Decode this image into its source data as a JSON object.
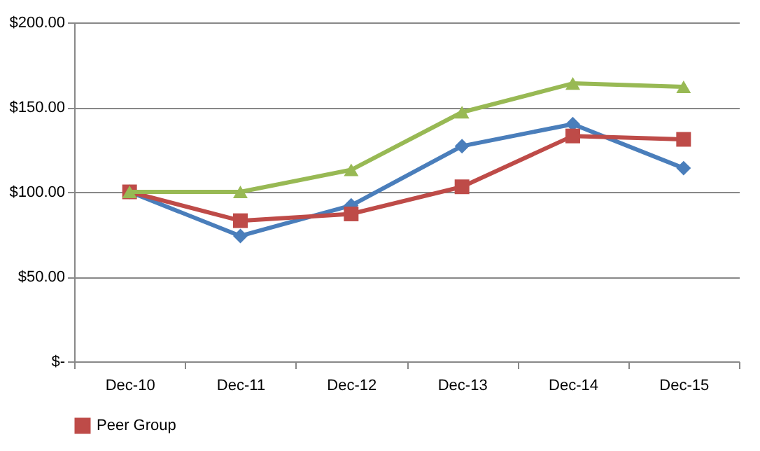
{
  "chart_data": {
    "type": "line",
    "categories": [
      "Dec-10",
      "Dec-11",
      "Dec-12",
      "Dec-13",
      "Dec-14",
      "Dec-15"
    ],
    "series": [
      {
        "color": "#4a7ebb",
        "marker": "diamond",
        "values": [
          100,
          74,
          92,
          127,
          140,
          114
        ]
      },
      {
        "name": "Peer Group",
        "color": "#be4b48",
        "marker": "square",
        "values": [
          100,
          83,
          87,
          103,
          133,
          131
        ]
      },
      {
        "color": "#98b954",
        "marker": "triangle",
        "values": [
          100,
          100,
          113,
          147,
          164,
          162
        ]
      }
    ],
    "ylim": [
      0,
      200
    ],
    "yticks": [
      {
        "value": 0,
        "label": "$-"
      },
      {
        "value": 50,
        "label": "$50.00"
      },
      {
        "value": 100,
        "label": "$100.00"
      },
      {
        "value": 150,
        "label": "$150.00"
      },
      {
        "value": 200,
        "label": "$200.00"
      }
    ],
    "grid": "y",
    "legend": "bottom",
    "line_style": "solid"
  }
}
